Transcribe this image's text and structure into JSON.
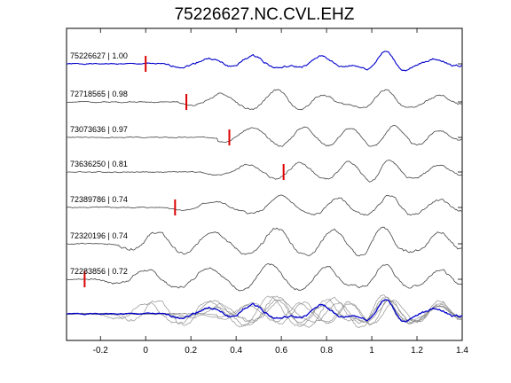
{
  "chart_data": {
    "type": "line",
    "title": "75226627.NC.CVL.EHZ",
    "xlabel": "",
    "ylabel": "",
    "xlim": [
      -0.35,
      1.4
    ],
    "x_ticks": [
      -0.2,
      0,
      0.2,
      0.4,
      0.6,
      0.8,
      1,
      1.2,
      1.4
    ],
    "x_tick_labels": [
      "-0.2",
      "0",
      "0.2",
      "0.4",
      "0.6",
      "0.8",
      "1",
      "1.2",
      "1.4"
    ],
    "grid": false,
    "legend": "none",
    "series": [
      {
        "label": "75226627 | 1.00",
        "pick_time": 0.0,
        "color": "#0000cc",
        "amp": 0.9,
        "seed": 1,
        "onset": 0.0,
        "wiggles": [
          [
            0.3,
            0.34,
            0.55
          ],
          [
            0.47,
            0.28,
            0.85
          ],
          [
            0.78,
            0.22,
            0.65
          ],
          [
            1.06,
            0.2,
            1.0
          ],
          [
            1.28,
            0.24,
            0.4
          ]
        ]
      },
      {
        "label": "72718565 | 0.98",
        "pick_time": 0.18,
        "color": "#444444",
        "amp": 0.9,
        "seed": 2,
        "onset": 0.15,
        "wiggles": [
          [
            0.33,
            0.3,
            0.6
          ],
          [
            0.58,
            0.26,
            0.95
          ],
          [
            0.78,
            0.25,
            0.6
          ],
          [
            1.06,
            0.22,
            1.0
          ],
          [
            1.3,
            0.24,
            0.5
          ]
        ]
      },
      {
        "label": "73073636 | 0.97",
        "pick_time": 0.37,
        "color": "#444444",
        "amp": 0.9,
        "seed": 3,
        "onset": 0.32,
        "wiggles": [
          [
            0.47,
            0.3,
            0.75
          ],
          [
            0.7,
            0.26,
            0.85
          ],
          [
            0.9,
            0.24,
            0.7
          ],
          [
            1.1,
            0.22,
            0.95
          ],
          [
            1.3,
            0.22,
            0.6
          ]
        ]
      },
      {
        "label": "73636250 | 0.81",
        "pick_time": 0.61,
        "color": "#444444",
        "amp": 0.9,
        "seed": 4,
        "onset": 0.25,
        "wiggles": [
          [
            0.45,
            0.3,
            0.6
          ],
          [
            0.68,
            0.24,
            0.75
          ],
          [
            0.9,
            0.22,
            0.8
          ],
          [
            1.08,
            0.2,
            1.0
          ],
          [
            1.3,
            0.22,
            0.55
          ]
        ]
      },
      {
        "label": "72389786 | 0.74",
        "pick_time": 0.13,
        "color": "#444444",
        "amp": 0.9,
        "seed": 5,
        "onset": 0.1,
        "wiggles": [
          [
            0.3,
            0.3,
            0.5
          ],
          [
            0.6,
            0.28,
            0.9
          ],
          [
            0.85,
            0.22,
            0.75
          ],
          [
            1.08,
            0.22,
            1.0
          ],
          [
            1.3,
            0.24,
            0.6
          ]
        ]
      },
      {
        "label": "72320196 | 0.74",
        "pick_time": null,
        "color": "#444444",
        "amp": 1.2,
        "seed": 6,
        "onset": -0.2,
        "wiggles": [
          [
            0.05,
            0.28,
            0.7
          ],
          [
            0.3,
            0.3,
            0.8
          ],
          [
            0.58,
            0.26,
            0.95
          ],
          [
            0.83,
            0.24,
            0.85
          ],
          [
            1.05,
            0.22,
            1.0
          ],
          [
            1.3,
            0.22,
            0.8
          ]
        ]
      },
      {
        "label": "72283856 | 0.72",
        "pick_time": -0.27,
        "color": "#444444",
        "amp": 1.1,
        "seed": 7,
        "onset": -0.3,
        "wiggles": [
          [
            0.0,
            0.3,
            0.6
          ],
          [
            0.28,
            0.3,
            0.8
          ],
          [
            0.55,
            0.26,
            0.95
          ],
          [
            0.8,
            0.24,
            0.9
          ],
          [
            1.06,
            0.22,
            1.0
          ],
          [
            1.3,
            0.22,
            0.7
          ]
        ]
      }
    ],
    "stack": {
      "label": "",
      "description": "overlay of all traces",
      "highlight_color": "#0000cc",
      "other_color": "#888888"
    },
    "pick_color": "#dd0000"
  }
}
